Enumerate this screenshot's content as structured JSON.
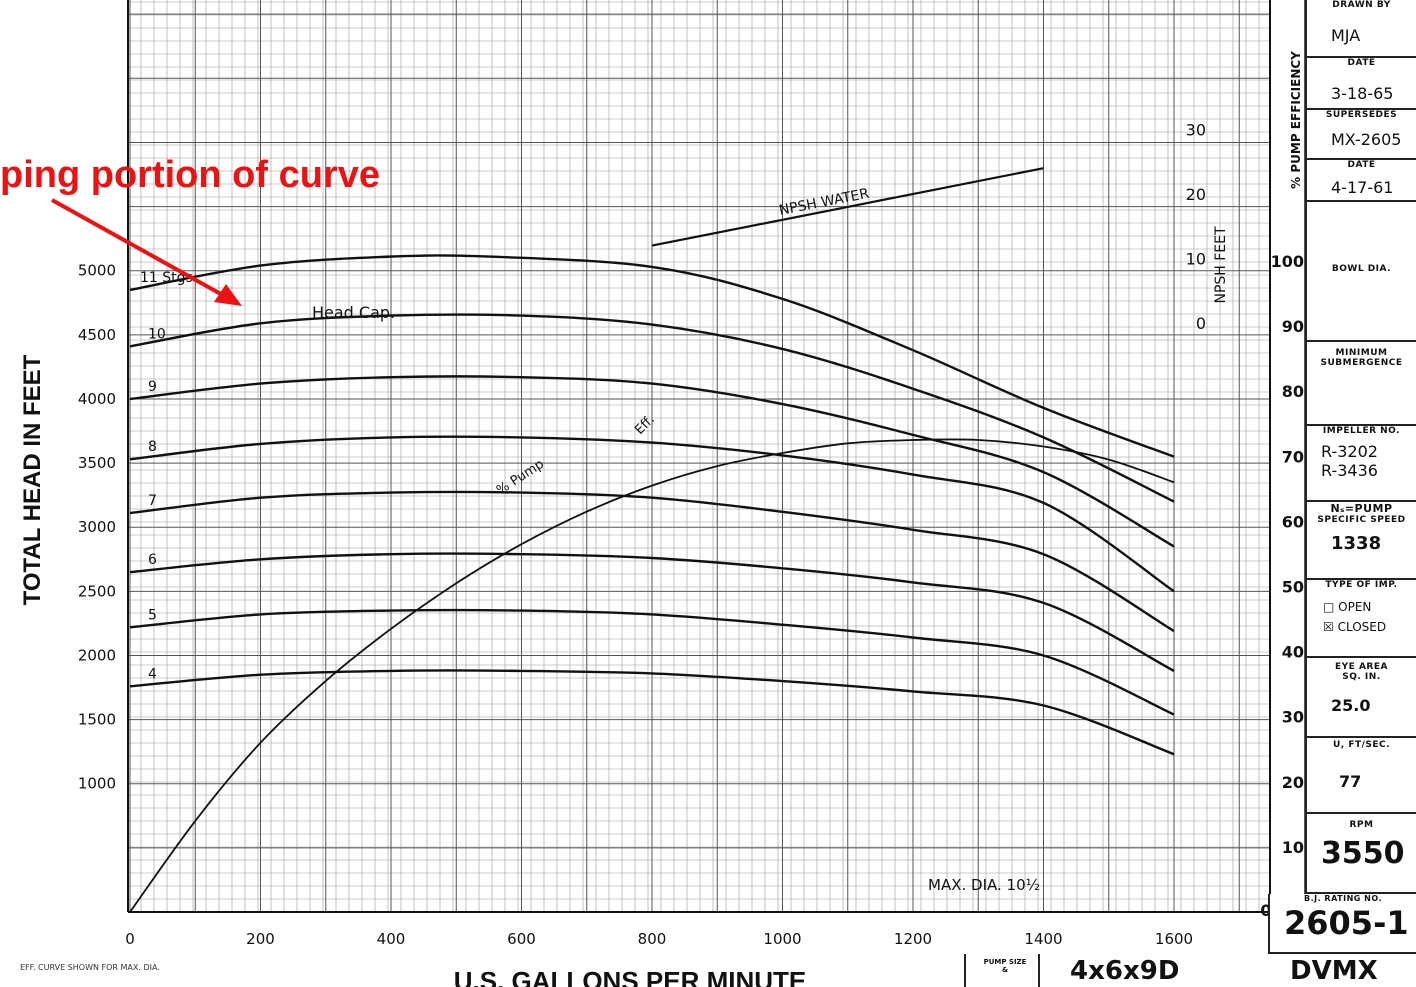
{
  "annotation": {
    "text": "ping portion of curve",
    "color": "#ee1111"
  },
  "chart_data": {
    "type": "line",
    "ylabel": "TOTAL HEAD IN FEET",
    "xlabel": "U.S. GALLONS PER MINUTE",
    "xlim": [
      0,
      1800
    ],
    "ylim": [
      0,
      5600
    ],
    "x_ticks": [
      "0",
      "200",
      "400",
      "600",
      "800",
      "1000",
      "1200",
      "1400",
      "1600"
    ],
    "y_ticks": [
      "1000",
      "1500",
      "2000",
      "2500",
      "3000",
      "3500",
      "4000",
      "4500",
      "5000"
    ],
    "eff_ticks": [
      "10",
      "20",
      "30",
      "40",
      "50",
      "60",
      "70",
      "80",
      "90",
      "100"
    ],
    "npsh_ticks": [
      "0",
      "10",
      "20",
      "30"
    ],
    "eff_axis_label": "% PUMP EFFICIENCY",
    "npsh_axis_label": "NPSH FEET",
    "grid": true,
    "head_series": [
      {
        "name": "11 Stgs.",
        "x": [
          0,
          200,
          400,
          550,
          800,
          1000,
          1200,
          1400,
          1600
        ],
        "y": [
          4850,
          5040,
          5110,
          5110,
          5030,
          4780,
          4380,
          3930,
          3550
        ]
      },
      {
        "name": "10",
        "x": [
          0,
          200,
          400,
          600,
          800,
          1000,
          1200,
          1400,
          1600
        ],
        "y": [
          4410,
          4590,
          4650,
          4650,
          4580,
          4390,
          4080,
          3700,
          3200
        ]
      },
      {
        "name": "9",
        "x": [
          0,
          200,
          400,
          600,
          800,
          1000,
          1200,
          1400,
          1600
        ],
        "y": [
          4000,
          4120,
          4170,
          4170,
          4120,
          3960,
          3720,
          3430,
          2850
        ]
      },
      {
        "name": "8",
        "x": [
          0,
          200,
          400,
          600,
          800,
          1000,
          1200,
          1400,
          1600
        ],
        "y": [
          3530,
          3650,
          3700,
          3700,
          3660,
          3560,
          3410,
          3190,
          2500
        ]
      },
      {
        "name": "7",
        "x": [
          0,
          200,
          400,
          600,
          800,
          1000,
          1200,
          1400,
          1600
        ],
        "y": [
          3110,
          3230,
          3270,
          3270,
          3230,
          3120,
          2980,
          2790,
          2190
        ]
      },
      {
        "name": "6",
        "x": [
          0,
          200,
          400,
          600,
          800,
          1000,
          1200,
          1400,
          1600
        ],
        "y": [
          2650,
          2750,
          2790,
          2790,
          2760,
          2680,
          2570,
          2410,
          1880
        ]
      },
      {
        "name": "5",
        "x": [
          0,
          200,
          400,
          600,
          800,
          1000,
          1200,
          1400,
          1600
        ],
        "y": [
          2220,
          2320,
          2350,
          2350,
          2320,
          2240,
          2140,
          2000,
          1540
        ]
      },
      {
        "name": "4",
        "x": [
          0,
          200,
          400,
          600,
          800,
          1000,
          1200,
          1400,
          1600
        ],
        "y": [
          1760,
          1850,
          1880,
          1880,
          1860,
          1800,
          1720,
          1610,
          1230
        ]
      }
    ],
    "efficiency_series": {
      "name": "% Pump Eff.",
      "x": [
        0,
        100,
        200,
        300,
        400,
        500,
        600,
        700,
        800,
        900,
        1000,
        1100,
        1200,
        1300,
        1400,
        1500,
        1600
      ],
      "y": [
        0,
        14,
        26,
        35.5,
        43.5,
        50.5,
        56.5,
        61.5,
        65.5,
        68.5,
        70.5,
        72,
        72.5,
        72.5,
        71.5,
        69.5,
        66
      ]
    },
    "npsh_series": {
      "name": "NPSH WATER",
      "x": [
        800,
        1400
      ],
      "y": [
        12,
        24
      ]
    },
    "labels": {
      "head_cap": "Head Cap.",
      "pump": "% Pump",
      "eff": "Eff.",
      "npsh": "NPSH WATER",
      "max_dia": "MAX. DIA. 10½"
    },
    "footnote": "EFF. CURVE SHOWN FOR MAX. DIA."
  },
  "title_block": {
    "drawn_by_label": "DRAWN BY",
    "drawn_by": "MJA",
    "date_label": "DATE",
    "date": "3-18-65",
    "supersedes_label": "SUPERSEDES",
    "supersedes": "MX-2605",
    "date2_label": "DATE",
    "date2": "4-17-61",
    "bowl_dia_label": "BOWL DIA.",
    "min_sub_label": "MINIMUM SUBMERGENCE",
    "impeller_label": "IMPELLER NO.",
    "impeller_1": "R-3202",
    "impeller_2": "R-3436",
    "ns_label": "Nₛ=PUMP",
    "ns_sub": "SPECIFIC SPEED",
    "ns": "1338",
    "type_label": "TYPE OF IMP.",
    "type_open": "□ OPEN",
    "type_closed": "☒ CLOSED",
    "eye_label": "EYE AREA SQ. IN.",
    "eye": "25.0",
    "u_label": "U, FT/SEC.",
    "u": "77",
    "rpm_label": "RPM",
    "rpm": "3550",
    "rating_label": "B.J. RATING NO.",
    "rating": "2605-1",
    "pump_size_label": "PUMP SIZE &",
    "pump_size": "4x6x9D",
    "model": "DVMX"
  }
}
